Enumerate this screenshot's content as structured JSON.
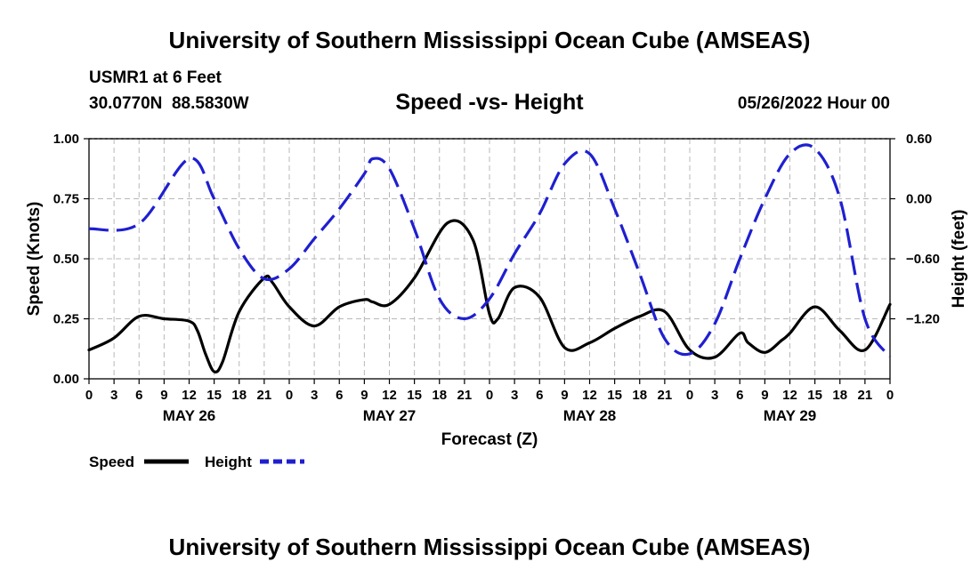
{
  "page_title": "University of Southern Mississippi Ocean Cube (AMSEAS)",
  "footer_title": "University of Southern Mississippi Ocean Cube (AMSEAS)",
  "station": {
    "name": "USMR1 at 6 Feet",
    "coords": "30.0770N  88.5830W",
    "datetime": "05/26/2022 Hour 00"
  },
  "chart_data": {
    "type": "line",
    "title": "Speed -vs- Height",
    "xlabel": "Forecast (Z)",
    "ylabel": "Speed (Knots)",
    "y2label": "Height (feet)",
    "xlim": [
      0,
      96
    ],
    "ylim": [
      0,
      1
    ],
    "y2lim": [
      -1.8,
      0.6
    ],
    "y_ticks": [
      0,
      0.25,
      0.5,
      0.75,
      1.0
    ],
    "y_tick_labels": [
      "0.00",
      "0.25",
      "0.50",
      "0.75",
      "1.00"
    ],
    "y2_ticks": [
      0.6,
      0.0,
      -0.6,
      -1.2
    ],
    "y2_tick_labels": [
      "0.60",
      "0.00",
      "−0.60",
      "−1.20"
    ],
    "x_ticks": [
      0,
      3,
      6,
      9,
      12,
      15,
      18,
      21,
      24,
      27,
      30,
      33,
      36,
      39,
      42,
      45,
      48,
      51,
      54,
      57,
      60,
      63,
      66,
      69,
      72,
      75,
      78,
      81,
      84,
      87,
      90,
      93,
      96
    ],
    "x_tick_labels": [
      "0",
      "3",
      "6",
      "9",
      "12",
      "15",
      "18",
      "21",
      "0",
      "3",
      "6",
      "9",
      "12",
      "15",
      "18",
      "21",
      "0",
      "3",
      "6",
      "9",
      "12",
      "15",
      "18",
      "21",
      "0",
      "3",
      "6",
      "9",
      "12",
      "15",
      "18",
      "21",
      "0"
    ],
    "day_labels": [
      {
        "label": "MAY 26",
        "at": 12
      },
      {
        "label": "MAY 27",
        "at": 36
      },
      {
        "label": "MAY 28",
        "at": 60
      },
      {
        "label": "MAY 29",
        "at": 84
      }
    ],
    "grid": true,
    "series": [
      {
        "name": "Speed",
        "axis": "left",
        "color": "#000000",
        "dash": "solid",
        "x": [
          0,
          3,
          6,
          9,
          12,
          13,
          14,
          15,
          16,
          18,
          21,
          22,
          24,
          27,
          30,
          33,
          34,
          36,
          39,
          43,
          46,
          48,
          49,
          51,
          54,
          57,
          60,
          63,
          66,
          69,
          72,
          75,
          78,
          79,
          81,
          83,
          84,
          87,
          90,
          93,
          96
        ],
        "y": [
          0.12,
          0.17,
          0.26,
          0.25,
          0.24,
          0.2,
          0.1,
          0.03,
          0.07,
          0.28,
          0.42,
          0.4,
          0.3,
          0.22,
          0.3,
          0.33,
          0.32,
          0.31,
          0.42,
          0.65,
          0.58,
          0.27,
          0.25,
          0.38,
          0.34,
          0.13,
          0.15,
          0.21,
          0.26,
          0.28,
          0.12,
          0.09,
          0.19,
          0.15,
          0.11,
          0.16,
          0.19,
          0.3,
          0.2,
          0.12,
          0.31
        ]
      },
      {
        "name": "Height",
        "axis": "right",
        "color": "#1f1fd0",
        "dash": "dashed",
        "x": [
          0,
          6,
          12,
          15,
          18,
          21,
          24,
          27,
          30,
          33,
          34,
          36,
          39,
          42,
          45,
          48,
          51,
          54,
          57,
          60,
          63,
          66,
          69,
          72,
          75,
          78,
          81,
          84,
          87,
          90,
          93,
          96
        ],
        "y": [
          -0.3,
          -0.25,
          0.4,
          0.0,
          -0.5,
          -0.8,
          -0.7,
          -0.4,
          -0.1,
          0.25,
          0.4,
          0.3,
          -0.3,
          -1.0,
          -1.2,
          -1.0,
          -0.55,
          -0.15,
          0.35,
          0.45,
          -0.1,
          -0.75,
          -1.4,
          -1.55,
          -1.25,
          -0.6,
          0.0,
          0.45,
          0.5,
          0.0,
          -1.2,
          -1.58
        ]
      }
    ],
    "legend": [
      {
        "label": "Speed",
        "color": "#000000",
        "dash": "solid"
      },
      {
        "label": "Height",
        "color": "#1f1fd0",
        "dash": "dashed"
      }
    ]
  }
}
